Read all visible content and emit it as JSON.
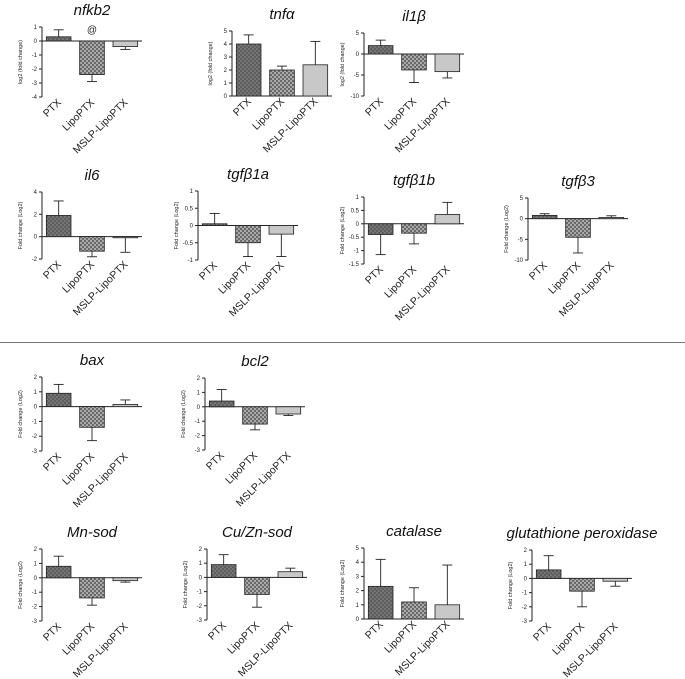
{
  "categories": [
    "PTX",
    "LipoPTX",
    "MSLP-LipoPTX"
  ],
  "chart_data": [
    {
      "type": "bar",
      "title": "nfkb2",
      "ylabel": "log2 (fold change)",
      "ylim": [
        -4,
        1
      ],
      "yticks": [
        1,
        0,
        -1,
        -2,
        -3,
        -4
      ],
      "categories": [
        "PTX",
        "LipoPTX",
        "MSLP-LipoPTX"
      ],
      "values": [
        0.3,
        -2.4,
        -0.4
      ],
      "errors": [
        0.5,
        0.5,
        0.2
      ],
      "annotations": [
        "",
        "@",
        ""
      ]
    },
    {
      "type": "bar",
      "title": "tnfα",
      "ylabel": "log2 (fold change)",
      "ylim": [
        0,
        5
      ],
      "yticks": [
        5,
        4,
        3,
        2,
        1,
        0
      ],
      "categories": [
        "PTX",
        "LipoPTX",
        "MSLP-LipoPTX"
      ],
      "values": [
        4.0,
        2.0,
        2.4
      ],
      "errors": [
        0.7,
        0.3,
        1.8
      ]
    },
    {
      "type": "bar",
      "title": "il1β",
      "ylabel": "log2 (fold change)",
      "ylim": [
        -10,
        5
      ],
      "yticks": [
        5,
        0,
        -5,
        -10
      ],
      "categories": [
        "PTX",
        "LipoPTX",
        "MSLP-LipoPTX"
      ],
      "values": [
        2.0,
        -3.8,
        -4.2
      ],
      "errors": [
        1.3,
        3.0,
        1.5
      ]
    },
    {
      "type": "bar",
      "title": "il6",
      "ylabel": "Fold change (Log2)",
      "ylim": [
        -2,
        4
      ],
      "yticks": [
        4,
        2,
        0,
        -2
      ],
      "categories": [
        "PTX",
        "LipoPTX",
        "MSLP-LipoPTX"
      ],
      "values": [
        1.9,
        -1.3,
        -0.1
      ],
      "errors": [
        1.3,
        0.5,
        1.3
      ]
    },
    {
      "type": "bar",
      "title": "tgfβ1a",
      "ylabel": "Fold change (Log2)",
      "ylim": [
        -1.0,
        1.0
      ],
      "yticks": [
        1.0,
        0.5,
        0.0,
        -0.5,
        -1.0
      ],
      "categories": [
        "PTX",
        "LipoPTX",
        "MSLP-LipoPTX"
      ],
      "values": [
        0.05,
        -0.5,
        -0.25
      ],
      "errors": [
        0.3,
        0.4,
        0.65
      ]
    },
    {
      "type": "bar",
      "title": "tgfβ1b",
      "ylabel": "Fold change (Log2)",
      "ylim": [
        -1.5,
        1.0
      ],
      "yticks": [
        1.0,
        0.5,
        0.0,
        -0.5,
        -1.0,
        -1.5
      ],
      "categories": [
        "PTX",
        "LipoPTX",
        "MSLP-LipoPTX"
      ],
      "values": [
        -0.4,
        -0.35,
        0.35
      ],
      "errors": [
        0.75,
        0.4,
        0.45
      ]
    },
    {
      "type": "bar",
      "title": "tgfβ3",
      "ylabel": "Fold change (Log2)",
      "ylim": [
        -10,
        5
      ],
      "yticks": [
        5,
        0,
        -5,
        -10
      ],
      "categories": [
        "PTX",
        "LipoPTX",
        "MSLP-LipoPTX"
      ],
      "values": [
        0.8,
        -4.5,
        0.3
      ],
      "errors": [
        0.4,
        3.8,
        0.4
      ]
    },
    {
      "type": "bar",
      "title": "bax",
      "ylabel": "Fold change (Log2)",
      "ylim": [
        -3,
        2
      ],
      "yticks": [
        2,
        1,
        0,
        -1,
        -2,
        -3
      ],
      "categories": [
        "PTX",
        "LipoPTX",
        "MSLP-LipoPTX"
      ],
      "values": [
        0.9,
        -1.4,
        0.15
      ],
      "errors": [
        0.6,
        0.9,
        0.3
      ]
    },
    {
      "type": "bar",
      "title": "bcl2",
      "ylabel": "Fold change (Log2)",
      "ylim": [
        -3,
        2
      ],
      "yticks": [
        2,
        1,
        0,
        -1,
        -2,
        -3
      ],
      "categories": [
        "PTX",
        "LipoPTX",
        "MSLP-LipoPTX"
      ],
      "values": [
        0.4,
        -1.2,
        -0.5
      ],
      "errors": [
        0.8,
        0.4,
        0.1
      ]
    },
    {
      "type": "bar",
      "title": "Mn-sod",
      "ylabel": "Fold change (Log2)",
      "ylim": [
        -3,
        2
      ],
      "yticks": [
        2,
        1,
        0,
        -1,
        -2,
        -3
      ],
      "categories": [
        "PTX",
        "LipoPTX",
        "MSLP-LipoPTX"
      ],
      "values": [
        0.8,
        -1.4,
        -0.2
      ],
      "errors": [
        0.7,
        0.5,
        0.1
      ]
    },
    {
      "type": "bar",
      "title": "Cu/Zn-sod",
      "ylabel": "Fold change (Log2)",
      "ylim": [
        -3,
        2
      ],
      "yticks": [
        2,
        1,
        0,
        -1,
        -2,
        -3
      ],
      "categories": [
        "PTX",
        "LipoPTX",
        "MSLP-LipoPTX"
      ],
      "values": [
        0.9,
        -1.2,
        0.4
      ],
      "errors": [
        0.7,
        0.9,
        0.25
      ]
    },
    {
      "type": "bar",
      "title": "catalase",
      "ylabel": "Fold change (Log2)",
      "ylim": [
        0,
        5
      ],
      "yticks": [
        5,
        4,
        3,
        2,
        1,
        0
      ],
      "categories": [
        "PTX",
        "LipoPTX",
        "MSLP-LipoPTX"
      ],
      "values": [
        2.3,
        1.2,
        1.0
      ],
      "errors": [
        1.9,
        1.0,
        2.8
      ]
    },
    {
      "type": "bar",
      "title": "glutathione peroxidase",
      "ylabel": "Fold change (Log2)",
      "ylim": [
        -3,
        2
      ],
      "yticks": [
        2,
        1,
        0,
        -1,
        -2,
        -3
      ],
      "categories": [
        "PTX",
        "LipoPTX",
        "MSLP-LipoPTX"
      ],
      "values": [
        0.6,
        -0.9,
        -0.2
      ],
      "errors": [
        1.0,
        1.1,
        0.35
      ]
    }
  ]
}
